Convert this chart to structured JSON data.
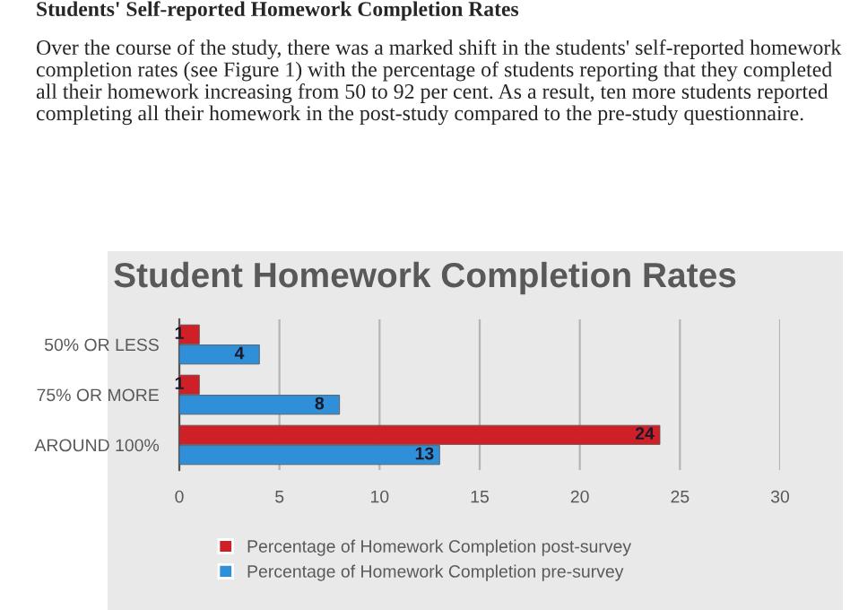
{
  "chart_data": {
    "type": "bar",
    "orientation": "horizontal",
    "title": "Student Homework Completion Rates",
    "annotations": [
      "Students' Self-reported Homework Completion Rates",
      "Over the course of the study, there was a marked shift in the students' self-reported homework completion rates (see Figure 1) with the percentage of students reporting that they completed all their homework increasing from 50 to 92 per cent. As a result, ten more students reported completing all their homework in the post-study compared to the pre-study questionnaire."
    ],
    "categories": [
      "50% OR LESS",
      "75% OR MORE",
      "AROUND 100%"
    ],
    "series": [
      {
        "name": "Percentage of Homework Completion post-survey",
        "color": "#d02027",
        "values": [
          1,
          1,
          24
        ]
      },
      {
        "name": "Percentage of Homework Completion pre-survey",
        "color": "#2f8fd8",
        "values": [
          4,
          8,
          13
        ]
      }
    ],
    "xlim": [
      0,
      30
    ],
    "xticks": [
      0,
      5,
      10,
      15,
      20,
      25,
      30
    ],
    "grid": "x",
    "legend": "bottom",
    "data_labels": true
  }
}
